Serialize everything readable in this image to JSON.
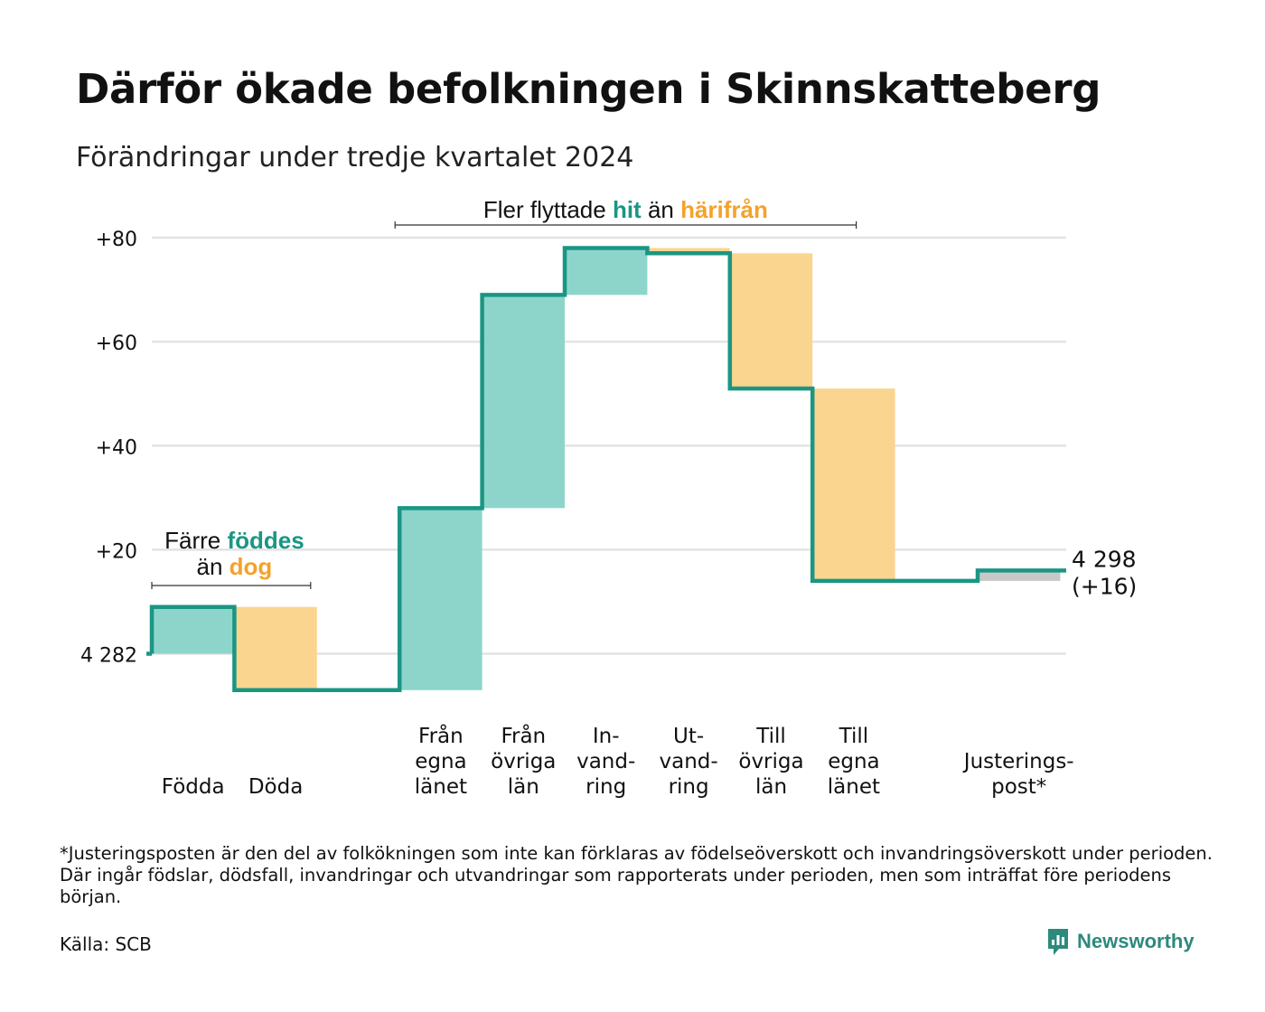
{
  "title": "Därför ökade befolkningen i Skinnskatteberg",
  "subtitle": "Förändringar under tredje kvartalet 2024",
  "chart_data": {
    "type": "waterfall",
    "baseline_label": "4 282",
    "y_ticks": [
      "+80",
      "+60",
      "+40",
      "+20"
    ],
    "y_tick_values": [
      80,
      60,
      40,
      20
    ],
    "ylim": [
      -7,
      80
    ],
    "grid": true,
    "steps": [
      {
        "label": [
          "Födda"
        ],
        "change": 9,
        "direction": "inflow"
      },
      {
        "label": [
          "Döda"
        ],
        "change": -16,
        "direction": "outflow"
      },
      {
        "label": [
          ""
        ],
        "change": 0,
        "direction": "none"
      },
      {
        "label": [
          "Från",
          "egna",
          "länet"
        ],
        "change": 35,
        "direction": "inflow"
      },
      {
        "label": [
          "Från",
          "övriga",
          "län"
        ],
        "change": 41,
        "direction": "inflow"
      },
      {
        "label": [
          "In-",
          "vand-",
          "ring"
        ],
        "change": 9,
        "direction": "inflow"
      },
      {
        "label": [
          "Ut-",
          "vand-",
          "ring"
        ],
        "change": -1,
        "direction": "outflow"
      },
      {
        "label": [
          "Till",
          "övriga",
          "län"
        ],
        "change": -26,
        "direction": "outflow"
      },
      {
        "label": [
          "Till",
          "egna",
          "länet"
        ],
        "change": -37,
        "direction": "outflow"
      },
      {
        "label": [
          ""
        ],
        "change": 0,
        "direction": "none"
      },
      {
        "label": [
          "Justerings-",
          "post*"
        ],
        "change": 2,
        "direction": "adjustment"
      }
    ],
    "end_label": [
      "4 298",
      "(+16)"
    ],
    "annotations": [
      {
        "parts": [
          [
            "Färre ",
            "plain"
          ],
          [
            "föddes",
            "in"
          ]
        ],
        "parts2": [
          [
            "än ",
            "plain"
          ],
          [
            "dog",
            "out"
          ]
        ],
        "span": [
          0,
          1
        ]
      },
      {
        "parts": [
          [
            "Fler flyttade ",
            "plain"
          ],
          [
            "hit",
            "in"
          ],
          [
            " än ",
            "plain"
          ],
          [
            "härifrån",
            "out"
          ]
        ],
        "span": [
          3,
          8
        ]
      }
    ],
    "colors": {
      "line": "#1a9683",
      "inflow": "#8dd5cb",
      "outflow": "#fad58f",
      "adjustment": "#c8c8c8",
      "in_text": "#1a9683",
      "out_text": "#f4a22b",
      "grid": "#e3e3e3"
    }
  },
  "footnote": "*Justeringsposten är den del av folkökningen som inte kan förklaras av födelseöverskott och invandringsöverskott under perioden. Där ingår födslar, dödsfall, invandringar och utvandringar som rapporterats under perioden, men som inträffat före periodens början.",
  "source": "Källa: SCB",
  "brand": {
    "name": "Newsworthy",
    "icon": "chart-bubble-icon",
    "color": "#2c8a7c"
  }
}
